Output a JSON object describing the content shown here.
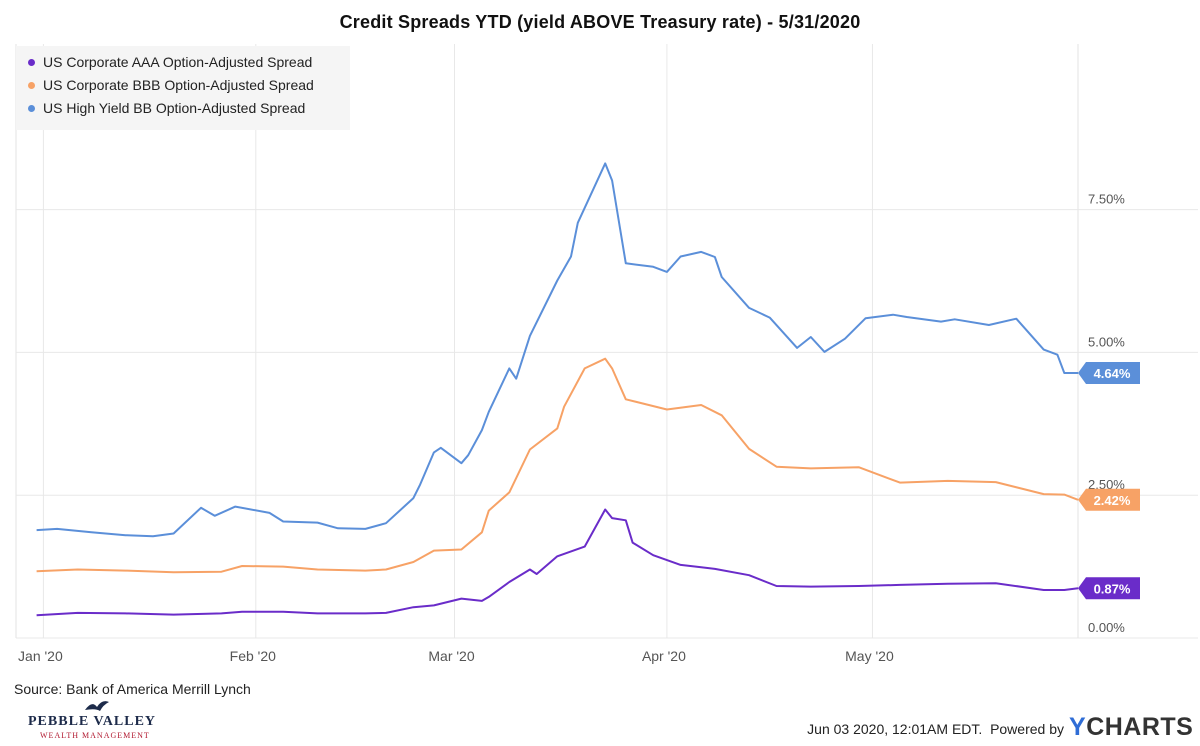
{
  "title": "Credit Spreads YTD (yield ABOVE Treasury rate) - 5/31/2020",
  "source": "Source: Bank of America Merrill Lynch",
  "footer": {
    "timestamp": "Jun 03 2020, 12:01AM EDT.",
    "powered_by": "Powered by",
    "ycharts_y": "Y",
    "ycharts_rest": "CHARTS"
  },
  "logo": {
    "name": "PEBBLE VALLEY",
    "tagline": "WEALTH MANAGEMENT"
  },
  "chart_data": {
    "type": "line",
    "xlabel": "",
    "ylabel": "",
    "x_tick_labels": [
      "Jan '20",
      "Feb '20",
      "Mar '20",
      "Apr '20",
      "May '20"
    ],
    "y_tick_labels": [
      "0.00%",
      "2.50%",
      "5.00%",
      "7.50%"
    ],
    "ylim": [
      0,
      10.4
    ],
    "grid": true,
    "legend_position": "top-left",
    "series": [
      {
        "name": "US Corporate AAA Option-Adjusted Spread",
        "color": "#6a2cc9",
        "last_label": "0.87%",
        "values": [
          [
            "2019-12-31",
            0.4
          ],
          [
            "2020-01-06",
            0.44
          ],
          [
            "2020-01-13",
            0.43
          ],
          [
            "2020-01-20",
            0.41
          ],
          [
            "2020-01-27",
            0.43
          ],
          [
            "2020-01-30",
            0.46
          ],
          [
            "2020-02-05",
            0.46
          ],
          [
            "2020-02-10",
            0.43
          ],
          [
            "2020-02-17",
            0.43
          ],
          [
            "2020-02-20",
            0.44
          ],
          [
            "2020-02-24",
            0.54
          ],
          [
            "2020-02-27",
            0.57
          ],
          [
            "2020-03-02",
            0.69
          ],
          [
            "2020-03-05",
            0.65
          ],
          [
            "2020-03-06",
            0.72
          ],
          [
            "2020-03-09",
            0.98
          ],
          [
            "2020-03-12",
            1.2
          ],
          [
            "2020-03-13",
            1.12
          ],
          [
            "2020-03-16",
            1.43
          ],
          [
            "2020-03-20",
            1.6
          ],
          [
            "2020-03-23",
            2.25
          ],
          [
            "2020-03-24",
            2.1
          ],
          [
            "2020-03-26",
            2.06
          ],
          [
            "2020-03-27",
            1.67
          ],
          [
            "2020-03-30",
            1.45
          ],
          [
            "2020-04-03",
            1.28
          ],
          [
            "2020-04-06",
            1.24
          ],
          [
            "2020-04-08",
            1.21
          ],
          [
            "2020-04-13",
            1.1
          ],
          [
            "2020-04-17",
            0.91
          ],
          [
            "2020-04-22",
            0.9
          ],
          [
            "2020-04-29",
            0.91
          ],
          [
            "2020-05-05",
            0.93
          ],
          [
            "2020-05-12",
            0.95
          ],
          [
            "2020-05-19",
            0.96
          ],
          [
            "2020-05-26",
            0.84
          ],
          [
            "2020-05-29",
            0.84
          ],
          [
            "2020-05-31",
            0.87
          ]
        ]
      },
      {
        "name": "US Corporate BBB Option-Adjusted Spread",
        "color": "#f7a266",
        "last_label": "2.42%",
        "values": [
          [
            "2019-12-31",
            1.17
          ],
          [
            "2020-01-06",
            1.2
          ],
          [
            "2020-01-13",
            1.18
          ],
          [
            "2020-01-20",
            1.15
          ],
          [
            "2020-01-27",
            1.16
          ],
          [
            "2020-01-30",
            1.26
          ],
          [
            "2020-02-05",
            1.25
          ],
          [
            "2020-02-10",
            1.2
          ],
          [
            "2020-02-17",
            1.18
          ],
          [
            "2020-02-20",
            1.2
          ],
          [
            "2020-02-24",
            1.33
          ],
          [
            "2020-02-27",
            1.53
          ],
          [
            "2020-03-02",
            1.55
          ],
          [
            "2020-03-05",
            1.85
          ],
          [
            "2020-03-06",
            2.23
          ],
          [
            "2020-03-09",
            2.55
          ],
          [
            "2020-03-12",
            3.3
          ],
          [
            "2020-03-16",
            3.67
          ],
          [
            "2020-03-17",
            4.05
          ],
          [
            "2020-03-20",
            4.72
          ],
          [
            "2020-03-23",
            4.89
          ],
          [
            "2020-03-24",
            4.72
          ],
          [
            "2020-03-26",
            4.18
          ],
          [
            "2020-04-01",
            4.0
          ],
          [
            "2020-04-06",
            4.08
          ],
          [
            "2020-04-09",
            3.9
          ],
          [
            "2020-04-13",
            3.31
          ],
          [
            "2020-04-17",
            3.0
          ],
          [
            "2020-04-22",
            2.97
          ],
          [
            "2020-04-29",
            2.99
          ],
          [
            "2020-05-05",
            2.72
          ],
          [
            "2020-05-12",
            2.75
          ],
          [
            "2020-05-19",
            2.73
          ],
          [
            "2020-05-26",
            2.52
          ],
          [
            "2020-05-29",
            2.51
          ],
          [
            "2020-05-31",
            2.42
          ]
        ]
      },
      {
        "name": "US High Yield BB Option-Adjusted Spread",
        "color": "#5b8fd9",
        "last_label": "4.64%",
        "values": [
          [
            "2019-12-31",
            1.89
          ],
          [
            "2020-01-03",
            1.91
          ],
          [
            "2020-01-08",
            1.85
          ],
          [
            "2020-01-13",
            1.8
          ],
          [
            "2020-01-17",
            1.78
          ],
          [
            "2020-01-20",
            1.83
          ],
          [
            "2020-01-24",
            2.28
          ],
          [
            "2020-01-26",
            2.14
          ],
          [
            "2020-01-29",
            2.3
          ],
          [
            "2020-02-03",
            2.19
          ],
          [
            "2020-02-05",
            2.04
          ],
          [
            "2020-02-10",
            2.02
          ],
          [
            "2020-02-13",
            1.92
          ],
          [
            "2020-02-17",
            1.91
          ],
          [
            "2020-02-20",
            2.01
          ],
          [
            "2020-02-24",
            2.45
          ],
          [
            "2020-02-25",
            2.69
          ],
          [
            "2020-02-27",
            3.25
          ],
          [
            "2020-02-28",
            3.33
          ],
          [
            "2020-03-02",
            3.06
          ],
          [
            "2020-03-03",
            3.2
          ],
          [
            "2020-03-05",
            3.64
          ],
          [
            "2020-03-06",
            3.96
          ],
          [
            "2020-03-09",
            4.72
          ],
          [
            "2020-03-10",
            4.54
          ],
          [
            "2020-03-12",
            5.29
          ],
          [
            "2020-03-16",
            6.26
          ],
          [
            "2020-03-18",
            6.68
          ],
          [
            "2020-03-19",
            7.27
          ],
          [
            "2020-03-23",
            8.31
          ],
          [
            "2020-03-24",
            8.01
          ],
          [
            "2020-03-26",
            6.56
          ],
          [
            "2020-03-30",
            6.5
          ],
          [
            "2020-04-01",
            6.41
          ],
          [
            "2020-04-03",
            6.68
          ],
          [
            "2020-04-06",
            6.76
          ],
          [
            "2020-04-08",
            6.67
          ],
          [
            "2020-04-09",
            6.32
          ],
          [
            "2020-04-13",
            5.78
          ],
          [
            "2020-04-16",
            5.61
          ],
          [
            "2020-04-20",
            5.08
          ],
          [
            "2020-04-22",
            5.27
          ],
          [
            "2020-04-24",
            5.01
          ],
          [
            "2020-04-27",
            5.24
          ],
          [
            "2020-04-30",
            5.6
          ],
          [
            "2020-05-04",
            5.66
          ],
          [
            "2020-05-06",
            5.62
          ],
          [
            "2020-05-11",
            5.54
          ],
          [
            "2020-05-13",
            5.58
          ],
          [
            "2020-05-18",
            5.48
          ],
          [
            "2020-05-22",
            5.59
          ],
          [
            "2020-05-26",
            5.05
          ],
          [
            "2020-05-28",
            4.96
          ],
          [
            "2020-05-29",
            4.64
          ],
          [
            "2020-05-31",
            4.64
          ]
        ]
      }
    ]
  }
}
